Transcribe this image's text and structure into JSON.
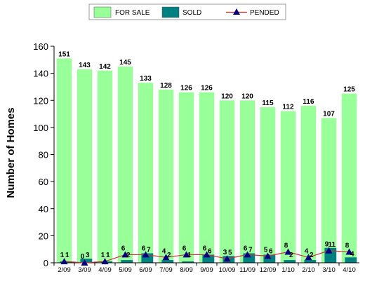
{
  "chart_data": {
    "type": "bar",
    "title": "",
    "xlabel": "",
    "ylabel": "Number of Homes",
    "ylim": [
      0,
      160
    ],
    "yticks": [
      0,
      20,
      40,
      60,
      80,
      100,
      120,
      140,
      160
    ],
    "grid": false,
    "legend_position": "top-center",
    "categories": [
      "2/09",
      "3/09",
      "4/09",
      "5/09",
      "6/09",
      "7/09",
      "8/09",
      "9/09",
      "10/09",
      "11/09",
      "12/09",
      "1/10",
      "2/10",
      "3/10",
      "4/10"
    ],
    "series": [
      {
        "name": "FOR SALE",
        "kind": "bar",
        "color": "#99ff99",
        "values": [
          151,
          143,
          142,
          145,
          133,
          128,
          126,
          126,
          120,
          120,
          115,
          112,
          116,
          107,
          125
        ]
      },
      {
        "name": "SOLD",
        "kind": "bar",
        "color": "#008080",
        "values": [
          1,
          3,
          1,
          2,
          7,
          2,
          1,
          6,
          5,
          7,
          6,
          2,
          2,
          11,
          4
        ]
      },
      {
        "name": "PENDED",
        "kind": "line",
        "color": "#cc3333",
        "marker_color": "#000080",
        "values": [
          1,
          0,
          1,
          6,
          6,
          4,
          6,
          6,
          3,
          6,
          5,
          8,
          4,
          9,
          8
        ]
      }
    ]
  }
}
